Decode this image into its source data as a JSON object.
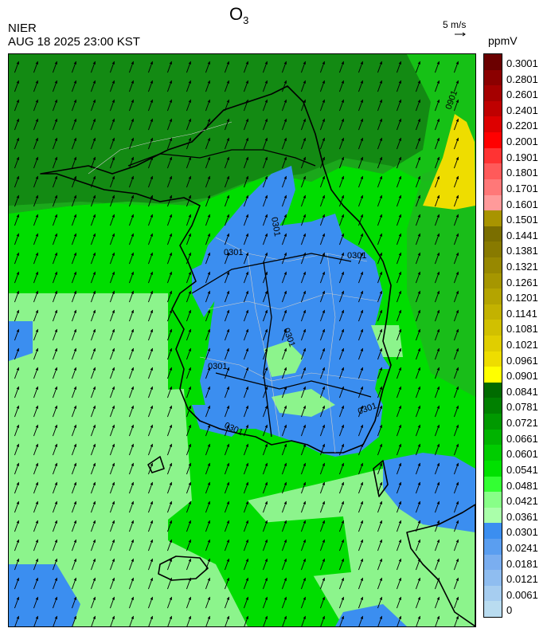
{
  "header": {
    "title_main": "O",
    "title_sub": "3",
    "agency": "NIER",
    "datetime": "AUG 18 2025 23:00 KST"
  },
  "wind_reference": {
    "label": "5 m/s"
  },
  "colorbar": {
    "unit": "ppmV",
    "labels": [
      "0.3001",
      "0.2801",
      "0.2601",
      "0.2401",
      "0.2201",
      "0.2001",
      "0.1901",
      "0.1801",
      "0.1701",
      "0.1601",
      "0.1501",
      "0.1441",
      "0.1381",
      "0.1321",
      "0.1261",
      "0.1201",
      "0.1141",
      "0.1081",
      "0.1021",
      "0.0961",
      "0.0901",
      "0.0841",
      "0.0781",
      "0.0721",
      "0.0661",
      "0.0601",
      "0.0541",
      "0.0481",
      "0.0421",
      "0.0361",
      "0.0301",
      "0.0241",
      "0.0181",
      "0.0121",
      "0.0061",
      "0"
    ],
    "colors": [
      "#6b0000",
      "#8b0000",
      "#a50000",
      "#bf0000",
      "#dd0000",
      "#ff0000",
      "#ff3333",
      "#ff5a5a",
      "#ff7878",
      "#ff9a9a",
      "#a89400",
      "#7a6e00",
      "#887a00",
      "#978800",
      "#a69600",
      "#b4a400",
      "#c3b200",
      "#d1c000",
      "#e0ce00",
      "#eedd00",
      "#ffff00",
      "#006b00",
      "#008000",
      "#009900",
      "#00b300",
      "#00cc00",
      "#00e100",
      "#33ff33",
      "#88ff88",
      "#aaffaa",
      "#3b8ef0",
      "#5a9ef0",
      "#7aaef0",
      "#8fbdf0",
      "#a6cdf0",
      "#b9dcf0"
    ]
  },
  "map": {
    "contour_labels": [
      "0301",
      "0301",
      "0301",
      "0301",
      "0301",
      "0301",
      "0301",
      "0901"
    ],
    "land_colors": {
      "dark_green": "#138a13",
      "mid_green": "#1fb51f",
      "bright_green": "#00dd00",
      "light_green": "#7ef27e",
      "pale_green": "#9bf59b",
      "blue": "#3b8ef0",
      "yellow": "#eedd00"
    },
    "wind": {
      "direction_deg": 20,
      "spacing": 24
    }
  }
}
